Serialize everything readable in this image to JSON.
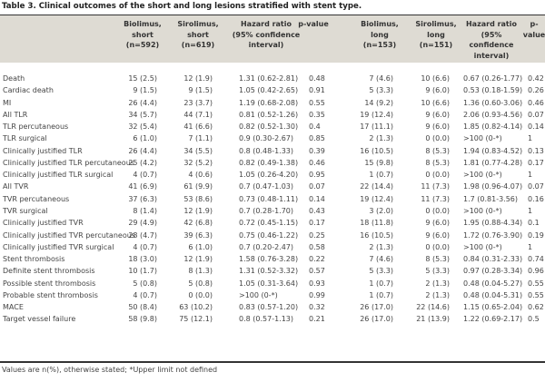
{
  "caption": "Table 3. Clinical outcomes of the short and long lesions stratified with stent type.",
  "columns": [
    "Biolimus,\nshort\n(n=592)",
    "Sirolimus,\nshort\n(n=619)",
    "Hazard ratio\n(95% confidence\ninterval)",
    "p-value",
    "Biolimus,\nlong\n(n=153)",
    "Sirolimus,\nlong\n(n=151)",
    "Hazard ratio\n(95% confidence\ninterval)",
    "p-value"
  ],
  "rows": [
    [
      "Death",
      "15 (2.5)",
      "12 (1.9)",
      "1.31 (0.62-2.81)",
      "0.48",
      "7 (4.6)",
      "10 (6.6)",
      "0.67 (0.26-1.77)",
      "0.42"
    ],
    [
      "Cardiac death",
      "9 (1.5)",
      "9 (1.5)",
      "1.05 (0.42-2.65)",
      "0.91",
      "5 (3.3)",
      "9 (6.0)",
      "0.53 (0.18-1.59)",
      "0.26"
    ],
    [
      "MI",
      "26 (4.4)",
      "23 (3.7)",
      "1.19 (0.68-2.08)",
      "0.55",
      "14 (9.2)",
      "10 (6.6)",
      "1.36 (0.60-3.06)",
      "0.46"
    ],
    [
      "All TLR",
      "34 (5.7)",
      "44 (7.1)",
      "0.81 (0.52-1.26)",
      "0.35",
      "19 (12.4)",
      "9 (6.0)",
      "2.06 (0.93-4.56)",
      "0.07"
    ],
    [
      "TLR percutaneous",
      "32 (5.4)",
      "41 (6.6)",
      "0.82 (0.52-1.30)",
      "0.4",
      "17 (11.1)",
      "9 (6.0)",
      "1.85 (0.82-4.14)",
      "0.14"
    ],
    [
      "TLR surgical",
      "6 (1.0)",
      "7 (1.1)",
      "0.9 (0.30-2.67)",
      "0.85",
      "2 (1.3)",
      "0 (0.0)",
      ">100 (0-*)",
      "1"
    ],
    [
      "Clinically justified TLR",
      "26 (4.4)",
      "34 (5.5)",
      "0.8 (0.48-1.33)",
      "0.39",
      "16 (10.5)",
      "8 (5.3)",
      "1.94 (0.83-4.52)",
      "0.13"
    ],
    [
      "Clinically justified TLR percutaneous",
      "25 (4.2)",
      "32 (5.2)",
      "0.82 (0.49-1.38)",
      "0.46",
      "15 (9.8)",
      "8 (5.3)",
      "1.81 (0.77-4.28)",
      "0.17"
    ],
    [
      "Clinically justified TLR surgical",
      "4 (0.7)",
      "4 (0.6)",
      "1.05 (0.26-4.20)",
      "0.95",
      "1 (0.7)",
      "0 (0.0)",
      ">100 (0-*)",
      "1"
    ],
    [
      "All TVR",
      "41 (6.9)",
      "61 (9.9)",
      "0.7 (0.47-1.03)",
      "0.07",
      "22 (14.4)",
      "11 (7.3)",
      "1.98 (0.96-4.07)",
      "0.07"
    ],
    [
      "TVR percutaneous",
      "37 (6.3)",
      "53 (8.6)",
      "0.73 (0.48-1.11)",
      "0.14",
      "19 (12.4)",
      "11 (7.3)",
      "1.7 (0.81-3.56)",
      "0.16"
    ],
    [
      "TVR surgical",
      "8 (1.4)",
      "12 (1.9)",
      "0.7 (0.28-1.70)",
      "0.43",
      "3 (2.0)",
      "0 (0.0)",
      ">100 (0-*)",
      "1"
    ],
    [
      "Clinically justified TVR",
      "29 (4.9)",
      "42 (6.8)",
      "0.72 (0.45-1.15)",
      "0.17",
      "18 (11.8)",
      "9 (6.0)",
      "1.95 (0.88-4.34)",
      "0.1"
    ],
    [
      "Clinically justified TVR percutaneous",
      "28 (4.7)",
      "39 (6.3)",
      "0.75 (0.46-1.22)",
      "0.25",
      "16 (10.5)",
      "9 (6.0)",
      "1.72 (0.76-3.90)",
      "0.19"
    ],
    [
      "Clinically justified TVR surgical",
      "4 (0.7)",
      "6 (1.0)",
      "0.7 (0.20-2.47)",
      "0.58",
      "2 (1.3)",
      "0 (0.0)",
      ">100 (0-*)",
      "1"
    ],
    [
      "Stent thrombosis",
      "18 (3.0)",
      "12 (1.9)",
      "1.58 (0.76-3.28)",
      "0.22",
      "7 (4.6)",
      "8 (5.3)",
      "0.84 (0.31-2.33)",
      "0.74"
    ],
    [
      "Definite stent thrombosis",
      "10 (1.7)",
      "8 (1.3)",
      "1.31 (0.52-3.32)",
      "0.57",
      "5 (3.3)",
      "5 (3.3)",
      "0.97 (0.28-3.34)",
      "0.96"
    ],
    [
      "Possible stent thrombosis",
      "5 (0.8)",
      "5 (0.8)",
      "1.05 (0.31-3.64)",
      "0.93",
      "1 (0.7)",
      "2 (1.3)",
      "0.48 (0.04-5.27)",
      "0.55"
    ],
    [
      "Probable stent thrombosis",
      "4 (0.7)",
      "0 (0.0)",
      ">100 (0-*)",
      "0.99",
      "1 (0.7)",
      "2 (1.3)",
      "0.48 (0.04-5.31)",
      "0.55"
    ],
    [
      "MACE",
      "50 (8.4)",
      "63 (10.2)",
      "0.83 (0.57-1.20)",
      "0.32",
      "26 (17.0)",
      "22 (14.6)",
      "1.15 (0.65-2.04)",
      "0.62"
    ],
    [
      "Target vessel failure",
      "58 (9.8)",
      "75 (12.1)",
      "0.8 (0.57-1.13)",
      "0.21",
      "26 (17.0)",
      "21 (13.9)",
      "1.22 (0.69-2.17)",
      "0.5"
    ]
  ],
  "footnote": "Values are n(%), otherwise stated; *Upper limit not defined"
}
